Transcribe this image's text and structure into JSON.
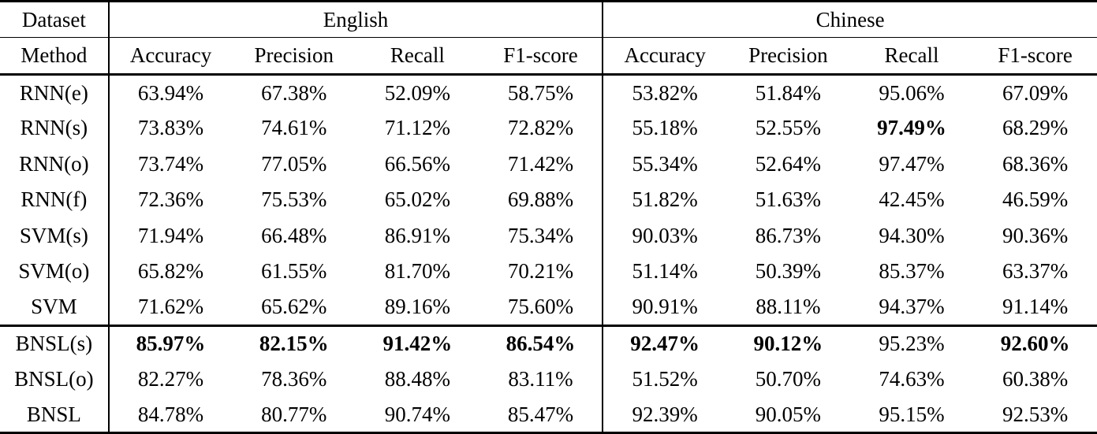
{
  "header": {
    "dataset_label": "Dataset",
    "method_label": "Method",
    "group_labels": [
      "English",
      "Chinese"
    ],
    "metric_labels": [
      "Accuracy",
      "Precision",
      "Recall",
      "F1-score"
    ]
  },
  "rows": [
    {
      "method": "RNN(e)",
      "values": [
        "63.94%",
        "67.38%",
        "52.09%",
        "58.75%",
        "53.82%",
        "51.84%",
        "95.06%",
        "67.09%"
      ],
      "bold": [
        false,
        false,
        false,
        false,
        false,
        false,
        false,
        false
      ],
      "section_start": false
    },
    {
      "method": "RNN(s)",
      "values": [
        "73.83%",
        "74.61%",
        "71.12%",
        "72.82%",
        "55.18%",
        "52.55%",
        "97.49%",
        "68.29%"
      ],
      "bold": [
        false,
        false,
        false,
        false,
        false,
        false,
        true,
        false
      ],
      "section_start": false
    },
    {
      "method": "RNN(o)",
      "values": [
        "73.74%",
        "77.05%",
        "66.56%",
        "71.42%",
        "55.34%",
        "52.64%",
        "97.47%",
        "68.36%"
      ],
      "bold": [
        false,
        false,
        false,
        false,
        false,
        false,
        false,
        false
      ],
      "section_start": false
    },
    {
      "method": "RNN(f)",
      "values": [
        "72.36%",
        "75.53%",
        "65.02%",
        "69.88%",
        "51.82%",
        "51.63%",
        "42.45%",
        "46.59%"
      ],
      "bold": [
        false,
        false,
        false,
        false,
        false,
        false,
        false,
        false
      ],
      "section_start": false
    },
    {
      "method": "SVM(s)",
      "values": [
        "71.94%",
        "66.48%",
        "86.91%",
        "75.34%",
        "90.03%",
        "86.73%",
        "94.30%",
        "90.36%"
      ],
      "bold": [
        false,
        false,
        false,
        false,
        false,
        false,
        false,
        false
      ],
      "section_start": false
    },
    {
      "method": "SVM(o)",
      "values": [
        "65.82%",
        "61.55%",
        "81.70%",
        "70.21%",
        "51.14%",
        "50.39%",
        "85.37%",
        "63.37%"
      ],
      "bold": [
        false,
        false,
        false,
        false,
        false,
        false,
        false,
        false
      ],
      "section_start": false
    },
    {
      "method": "SVM",
      "values": [
        "71.62%",
        "65.62%",
        "89.16%",
        "75.60%",
        "90.91%",
        "88.11%",
        "94.37%",
        "91.14%"
      ],
      "bold": [
        false,
        false,
        false,
        false,
        false,
        false,
        false,
        false
      ],
      "section_start": false
    },
    {
      "method": "BNSL(s)",
      "values": [
        "85.97%",
        "82.15%",
        "91.42%",
        "86.54%",
        "92.47%",
        "90.12%",
        "95.23%",
        "92.60%"
      ],
      "bold": [
        true,
        true,
        true,
        true,
        true,
        true,
        false,
        true
      ],
      "section_start": true
    },
    {
      "method": "BNSL(o)",
      "values": [
        "82.27%",
        "78.36%",
        "88.48%",
        "83.11%",
        "51.52%",
        "50.70%",
        "74.63%",
        "60.38%"
      ],
      "bold": [
        false,
        false,
        false,
        false,
        false,
        false,
        false,
        false
      ],
      "section_start": false
    },
    {
      "method": "BNSL",
      "values": [
        "84.78%",
        "80.77%",
        "90.74%",
        "85.47%",
        "92.39%",
        "90.05%",
        "95.15%",
        "92.53%"
      ],
      "bold": [
        false,
        false,
        false,
        false,
        false,
        false,
        false,
        false
      ],
      "section_start": false
    }
  ],
  "colors": {
    "text": "#000000",
    "background": "#ffffff",
    "rule": "#000000"
  }
}
